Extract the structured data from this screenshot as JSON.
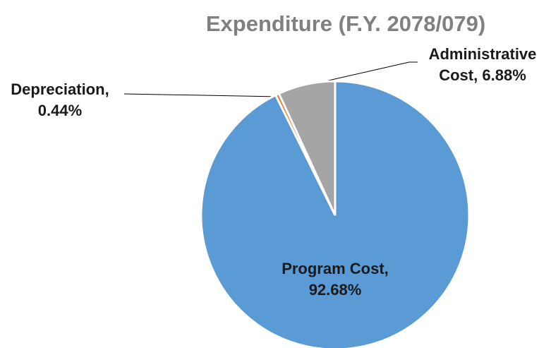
{
  "chart_data": {
    "type": "pie",
    "title": "Expenditure (F.Y. 2078/079)",
    "categories": [
      "Program Cost",
      "Depreciation",
      "Administrative Cost"
    ],
    "values": [
      92.68,
      0.44,
      6.88
    ],
    "value_labels": [
      "92.68%",
      "0.44%",
      "6.88%"
    ],
    "colors": [
      "#5b9bd5",
      "#ed7d31",
      "#a5a5a5"
    ]
  }
}
